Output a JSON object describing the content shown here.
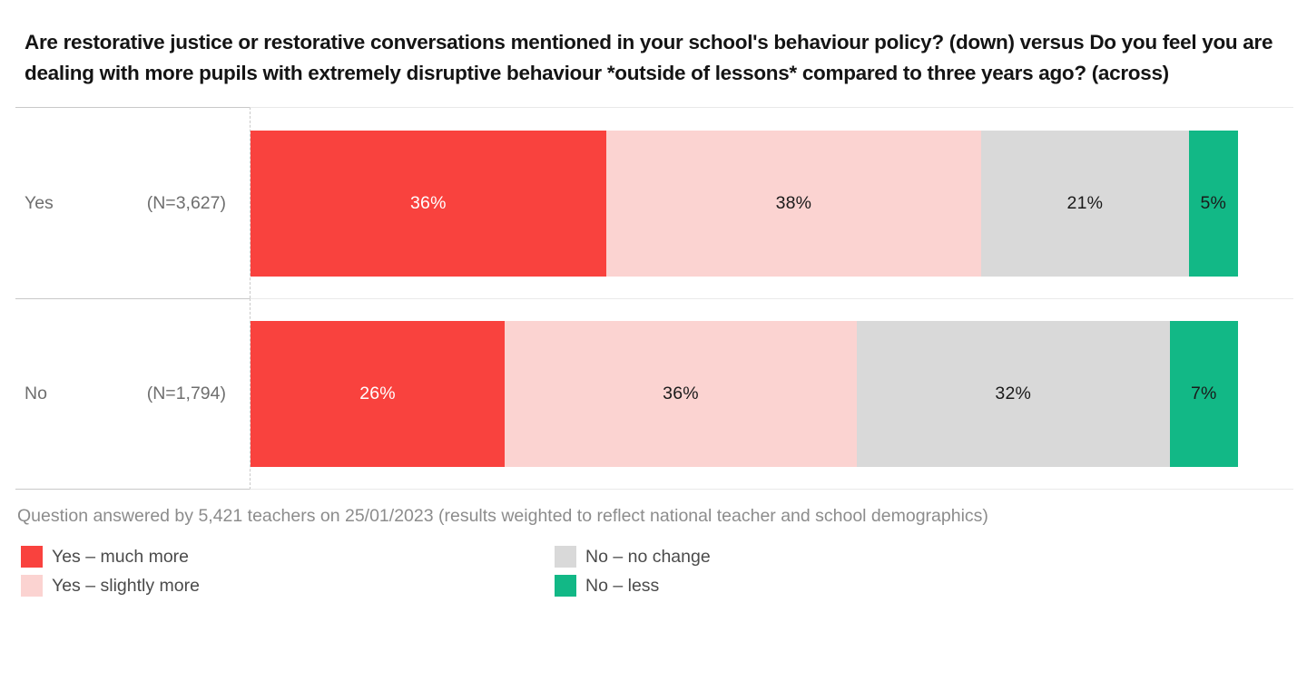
{
  "title": "Are restorative justice or restorative conversations mentioned in your school's behaviour policy? (down) versus Do you feel you are dealing with more pupils with extremely disruptive behaviour *outside of lessons* compared to three years ago? (across)",
  "footer_note": "Question answered by 5,421 teachers on 25/01/2023 (results weighted to reflect national teacher and school demographics)",
  "colors": {
    "red": "#F9423E",
    "pink": "#FBD3D1",
    "gray": "#D9D9D9",
    "green": "#12B886",
    "title_text": "#141414",
    "row_label_text": "#6E6E6E",
    "footer_text": "#8C8C8C",
    "legend_text": "#4B4B4B"
  },
  "chart_data": {
    "type": "bar",
    "orientation": "horizontal-stacked",
    "xlim": [
      0,
      100
    ],
    "units": "%",
    "grid": "off",
    "legend_position": "bottom",
    "series_labels": [
      "Yes – much more",
      "Yes – slightly more",
      "No – no change",
      "No – less"
    ],
    "series_colors": [
      "#F9423E",
      "#FBD3D1",
      "#D9D9D9",
      "#12B886"
    ],
    "value_label_colors": [
      "#ffffff",
      "#1a1a1a",
      "#1a1a1a",
      "#1a1a1a"
    ],
    "rows": [
      {
        "label": "Yes",
        "n_label": "(N=3,627)",
        "values": [
          36,
          38,
          21,
          5
        ]
      },
      {
        "label": "No",
        "n_label": "(N=1,794)",
        "values": [
          26,
          36,
          32,
          7
        ]
      }
    ]
  },
  "legend": {
    "columns": [
      [
        0,
        1
      ],
      [
        2,
        3
      ]
    ]
  }
}
